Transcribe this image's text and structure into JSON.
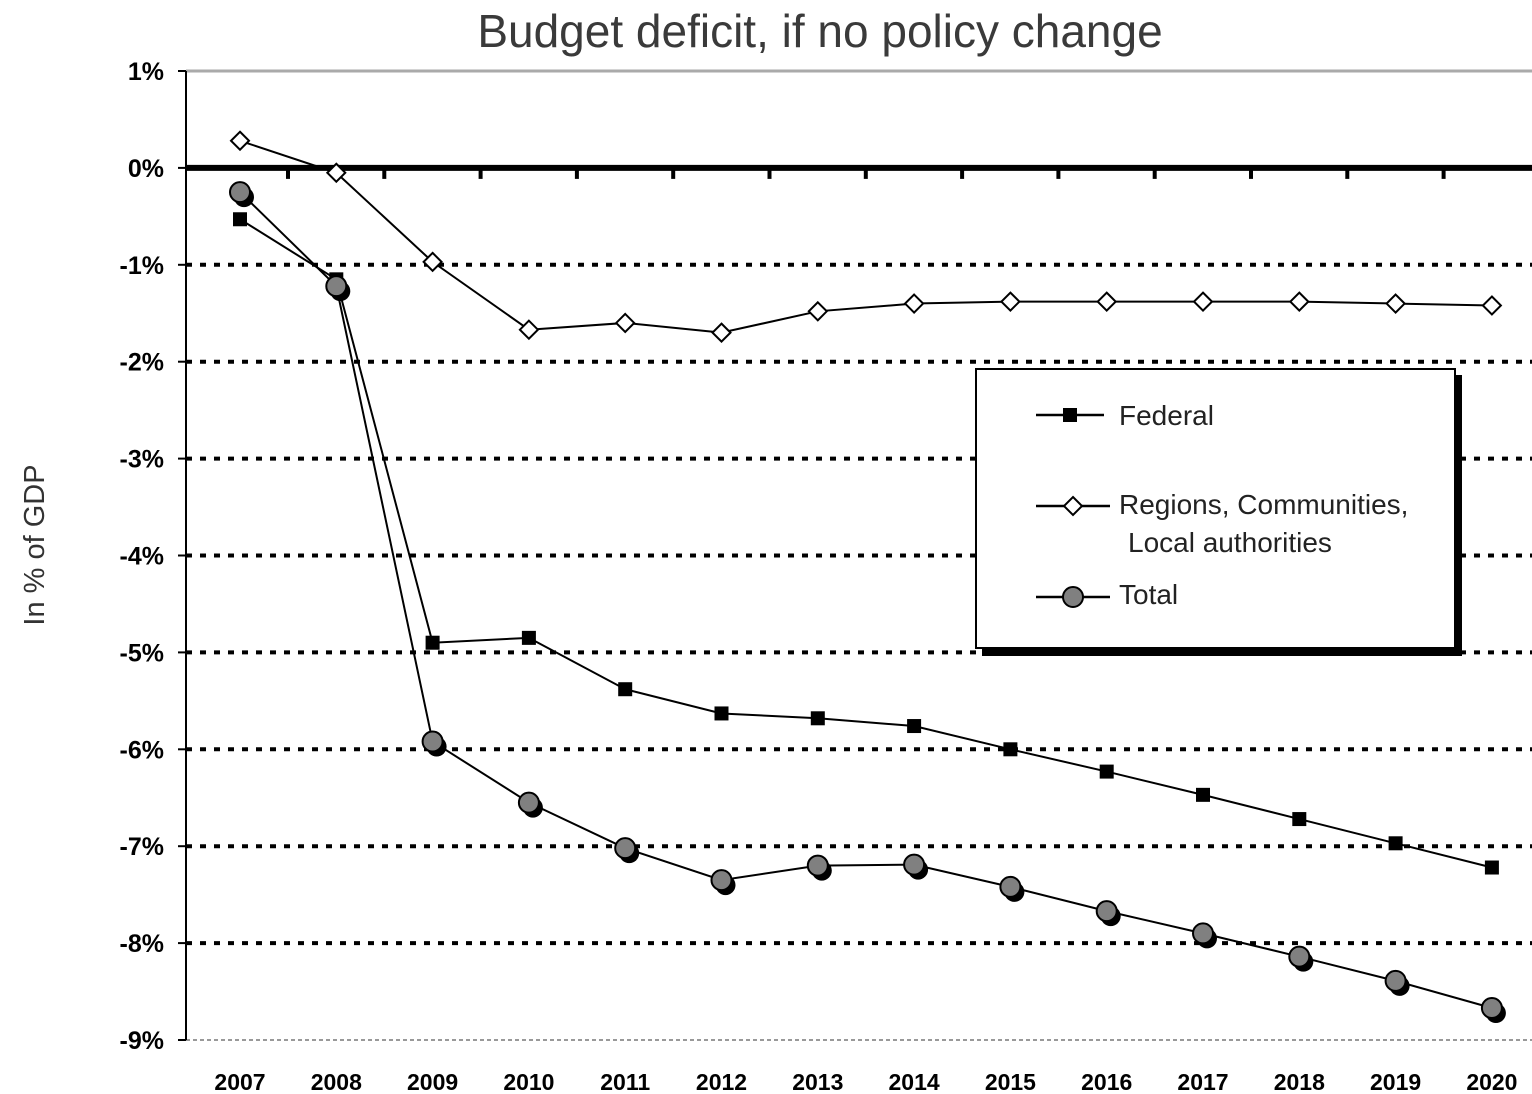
{
  "chart_data": {
    "type": "line",
    "title": "Budget deficit, if no policy change",
    "xlabel": "",
    "ylabel": "In % of GDP",
    "categories": [
      "2007",
      "2008",
      "2009",
      "2010",
      "2011",
      "2012",
      "2013",
      "2014",
      "2015",
      "2016",
      "2017",
      "2018",
      "2019",
      "2020"
    ],
    "ylim": [
      -9,
      1
    ],
    "yticks": [
      1,
      0,
      -1,
      -2,
      -3,
      -4,
      -5,
      -6,
      -7,
      -8,
      -9
    ],
    "ytick_labels": [
      "1%",
      "0%",
      "-1%",
      "-2%",
      "-3%",
      "-4%",
      "-5%",
      "-6%",
      "-7%",
      "-8%",
      "-9%"
    ],
    "grid": "horizontal dotted",
    "legend_position": "right",
    "series": [
      {
        "name": "Federal",
        "marker": "square",
        "color": "#000000",
        "values": [
          -0.53,
          -1.15,
          -4.9,
          -4.85,
          -5.38,
          -5.63,
          -5.68,
          -5.76,
          -6.0,
          -6.23,
          -6.47,
          -6.72,
          -6.97,
          -7.22
        ]
      },
      {
        "name": "Regions, Communities, Local authorities",
        "marker": "diamond",
        "color": "#000000",
        "values": [
          0.28,
          -0.05,
          -0.97,
          -1.67,
          -1.6,
          -1.7,
          -1.48,
          -1.4,
          -1.38,
          -1.38,
          -1.38,
          -1.38,
          -1.4,
          -1.42
        ]
      },
      {
        "name": "Total",
        "marker": "circle",
        "color": "#808080",
        "values": [
          -0.25,
          -1.22,
          -5.92,
          -6.55,
          -7.02,
          -7.35,
          -7.2,
          -7.19,
          -7.42,
          -7.67,
          -7.9,
          -8.14,
          -8.39,
          -8.67
        ]
      }
    ],
    "legend_labels": {
      "federal": "Federal",
      "regions_line1": "Regions, Communities,",
      "regions_line2": "Local authorities",
      "total": "Total"
    }
  }
}
